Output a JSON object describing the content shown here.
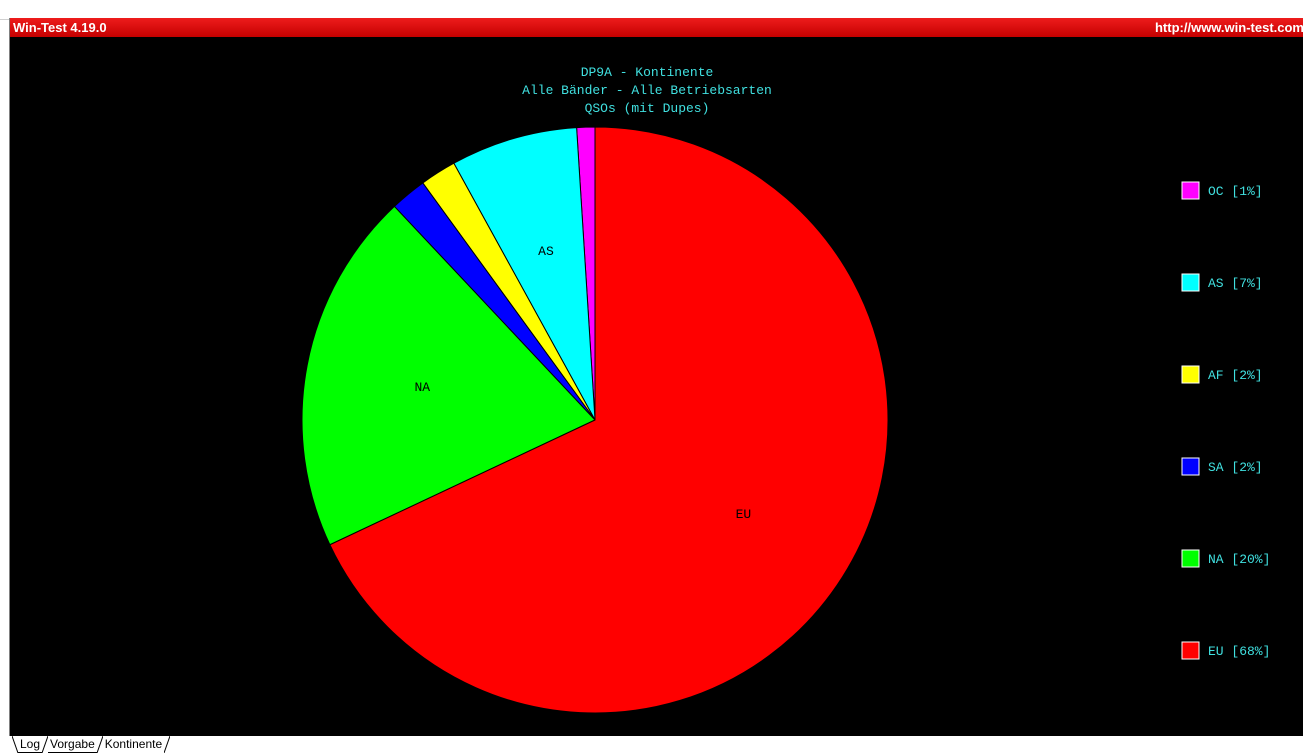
{
  "window": {
    "app_title": "Win-Test 4.19.0",
    "url": "http://www.win-test.com"
  },
  "tabs": [
    {
      "label": "Log",
      "active": false
    },
    {
      "label": "Vorgabe",
      "active": false
    },
    {
      "label": "Kontinente",
      "active": true
    }
  ],
  "colors": {
    "title_text": "#40e0e0",
    "legend_text": "#40e0e0",
    "background": "#000000",
    "titlebar": "#d40000"
  },
  "chart_data": {
    "type": "pie",
    "title": "DP9A - Kontinente",
    "subtitle": [
      "Alle Bänder - Alle Betriebsarten",
      "QSOs (mit Dupes)"
    ],
    "start_angle_deg": 0,
    "direction": "counterclockwise",
    "slices": [
      {
        "name": "OC",
        "value": 1,
        "percent_label": "OC [1%]",
        "color": "#ff00ff",
        "slice_label": ""
      },
      {
        "name": "AS",
        "value": 7,
        "percent_label": "AS [7%]",
        "color": "#00ffff",
        "slice_label": "AS"
      },
      {
        "name": "AF",
        "value": 2,
        "percent_label": "AF [2%]",
        "color": "#ffff00",
        "slice_label": ""
      },
      {
        "name": "SA",
        "value": 2,
        "percent_label": "SA [2%]",
        "color": "#0000ff",
        "slice_label": ""
      },
      {
        "name": "NA",
        "value": 20,
        "percent_label": "NA [20%]",
        "color": "#00ff00",
        "slice_label": "NA"
      },
      {
        "name": "EU",
        "value": 68,
        "percent_label": "EU [68%]",
        "color": "#ff0000",
        "slice_label": "EU"
      }
    ],
    "legend_position": "right"
  }
}
